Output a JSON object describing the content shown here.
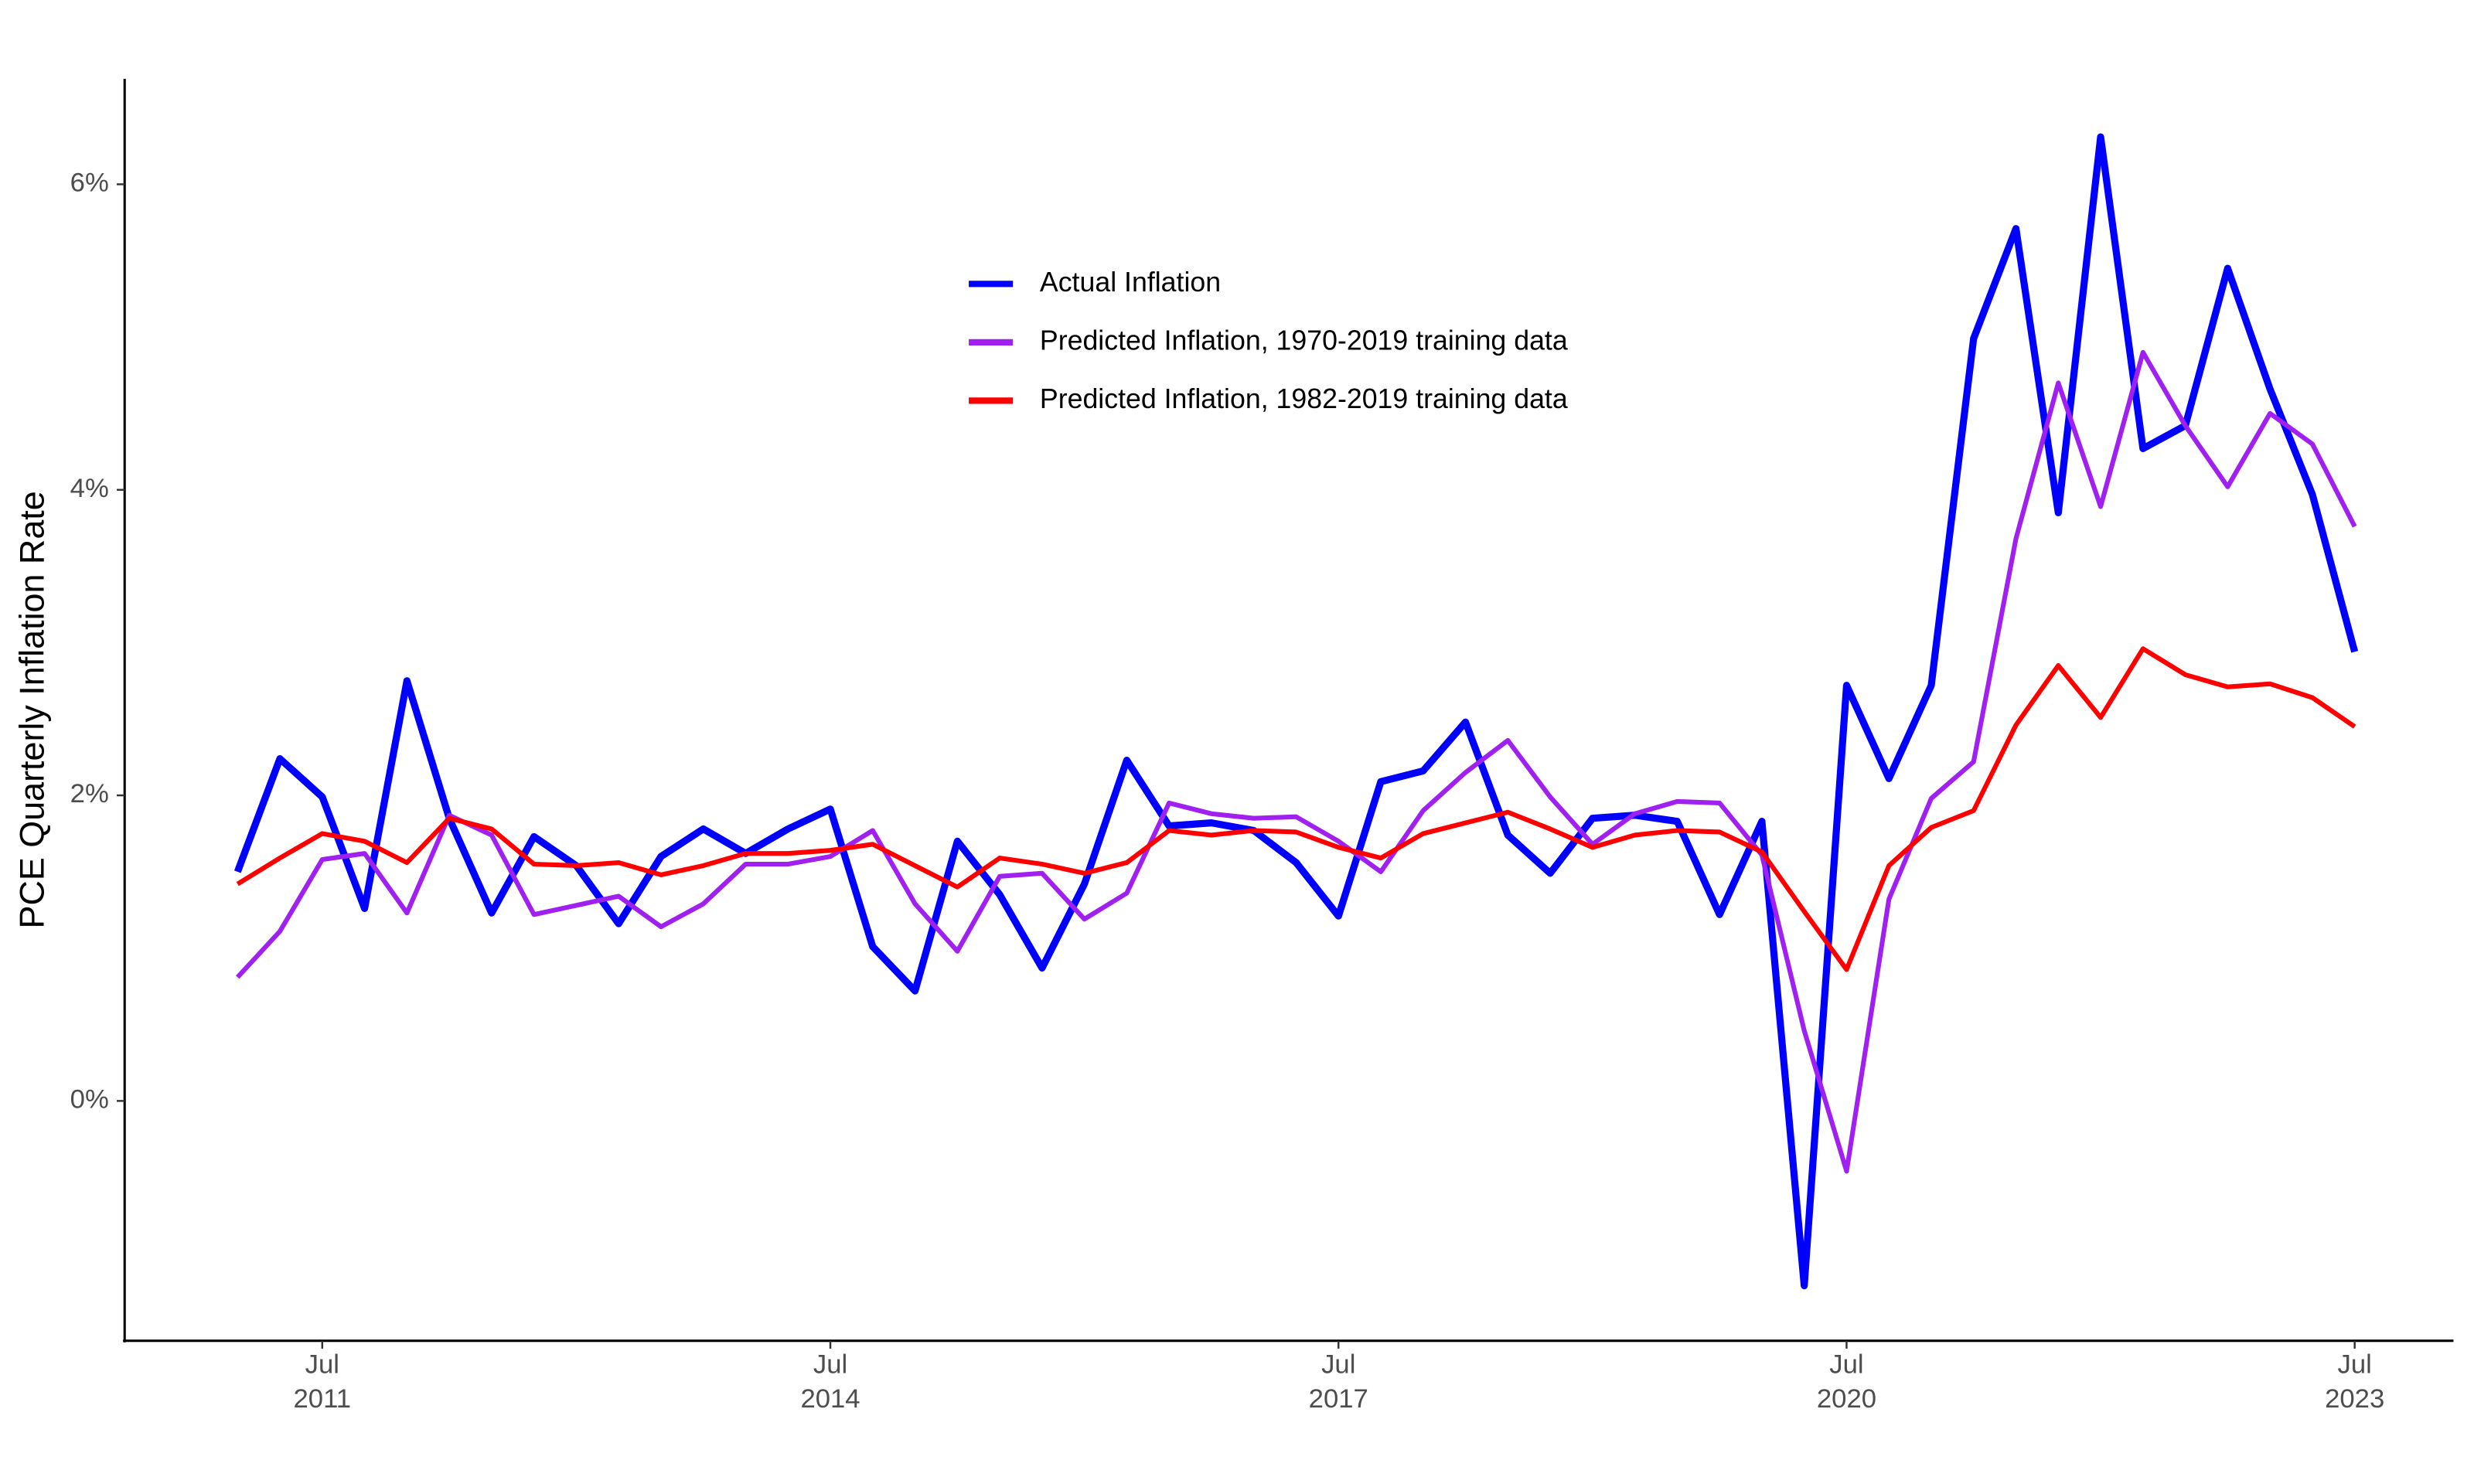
{
  "chart_data": {
    "type": "line",
    "y_label": "PCE Quarterly Inflation Rate",
    "x": [
      "2011-01",
      "2011-04",
      "2011-07",
      "2011-10",
      "2012-01",
      "2012-04",
      "2012-07",
      "2012-10",
      "2013-01",
      "2013-04",
      "2013-07",
      "2013-10",
      "2014-01",
      "2014-04",
      "2014-07",
      "2014-10",
      "2015-01",
      "2015-04",
      "2015-07",
      "2015-10",
      "2016-01",
      "2016-04",
      "2016-07",
      "2016-10",
      "2017-01",
      "2017-04",
      "2017-07",
      "2017-10",
      "2018-01",
      "2018-04",
      "2018-07",
      "2018-10",
      "2019-01",
      "2019-04",
      "2019-07",
      "2019-10",
      "2020-01",
      "2020-04",
      "2020-07",
      "2020-10",
      "2021-01",
      "2021-04",
      "2021-07",
      "2021-10",
      "2022-01",
      "2022-04",
      "2022-07",
      "2022-10",
      "2023-01",
      "2023-04",
      "2023-07"
    ],
    "series": [
      {
        "name": "Actual Inflation",
        "color": "#0000ff",
        "width": 4.5,
        "values": [
          1.5,
          2.24,
          1.99,
          1.26,
          2.75,
          1.85,
          1.23,
          1.73,
          1.54,
          1.16,
          1.6,
          1.78,
          1.62,
          1.78,
          1.91,
          1.01,
          0.72,
          1.7,
          1.35,
          0.87,
          1.42,
          2.23,
          1.8,
          1.82,
          1.77,
          1.56,
          1.21,
          2.09,
          2.16,
          2.48,
          1.74,
          1.49,
          1.85,
          1.87,
          1.83,
          1.22,
          1.83,
          -1.21,
          2.72,
          2.11,
          2.72,
          4.99,
          5.71,
          3.85,
          6.31,
          4.27,
          4.42,
          5.45,
          4.66,
          3.97,
          2.94
        ]
      },
      {
        "name": "Predicted Inflation, 1970-2019 training data",
        "color": "#a020f0",
        "width": 3,
        "values": [
          0.81,
          1.11,
          1.58,
          1.62,
          1.23,
          1.87,
          1.74,
          1.22,
          1.28,
          1.34,
          1.14,
          1.29,
          1.55,
          1.55,
          1.6,
          1.77,
          1.29,
          0.98,
          1.47,
          1.49,
          1.19,
          1.36,
          1.95,
          1.88,
          1.85,
          1.86,
          1.7,
          1.5,
          1.9,
          2.15,
          2.36,
          1.99,
          1.68,
          1.88,
          1.96,
          1.95,
          1.61,
          0.46,
          -0.46,
          1.32,
          1.98,
          2.22,
          3.68,
          4.7,
          3.89,
          4.9,
          4.42,
          4.02,
          4.5,
          4.3,
          3.76
        ]
      },
      {
        "name": "Predicted Inflation, 1982-2019 training data",
        "color": "#ff0000",
        "width": 3,
        "values": [
          1.42,
          1.59,
          1.75,
          1.7,
          1.56,
          1.85,
          1.78,
          1.55,
          1.54,
          1.56,
          1.48,
          1.54,
          1.62,
          1.62,
          1.64,
          1.68,
          1.54,
          1.4,
          1.59,
          1.55,
          1.49,
          1.56,
          1.77,
          1.74,
          1.77,
          1.76,
          1.66,
          1.59,
          1.75,
          1.82,
          1.89,
          1.78,
          1.66,
          1.74,
          1.77,
          1.76,
          1.63,
          1.24,
          0.86,
          1.54,
          1.79,
          1.9,
          2.46,
          2.85,
          2.51,
          2.96,
          2.79,
          2.71,
          2.73,
          2.64,
          2.45
        ]
      }
    ],
    "xlim": [
      "2010-05",
      "2024-02"
    ],
    "xticks": [
      {
        "value": "2011-07",
        "label": "Jul 2011"
      },
      {
        "value": "2014-07",
        "label": "Jul 2014"
      },
      {
        "value": "2017-07",
        "label": "Jul 2017"
      },
      {
        "value": "2020-07",
        "label": "Jul 2020"
      },
      {
        "value": "2023-07",
        "label": "Jul 2023"
      }
    ],
    "ylim": [
      -1.57,
      6.69
    ],
    "yticks": [
      {
        "value": 0,
        "label": "0%"
      },
      {
        "value": 2,
        "label": "2%"
      },
      {
        "value": 4,
        "label": "4%"
      },
      {
        "value": 6,
        "label": "6%"
      }
    ],
    "grid": false,
    "legend": "top"
  }
}
